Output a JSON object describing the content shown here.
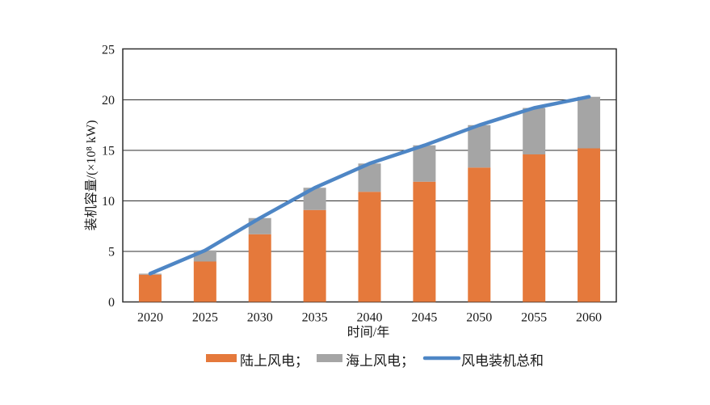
{
  "chart_data": {
    "type": "bar",
    "subtype": "stacked-bar-with-total-line",
    "title": "",
    "categories": [
      "2020",
      "2025",
      "2030",
      "2035",
      "2040",
      "2045",
      "2050",
      "2055",
      "2060"
    ],
    "series": [
      {
        "name": "陆上风电",
        "type": "bar",
        "stack": "capacity",
        "color": "#E5793B",
        "values": [
          2.7,
          4.0,
          6.7,
          9.1,
          10.9,
          11.9,
          13.3,
          14.6,
          15.2
        ]
      },
      {
        "name": "海上风电",
        "type": "bar",
        "stack": "capacity",
        "color": "#A5A5A5",
        "values": [
          0.1,
          1.1,
          1.6,
          2.2,
          2.8,
          3.6,
          4.2,
          4.6,
          5.1
        ]
      },
      {
        "name": "风电装机总和",
        "type": "line",
        "color": "#4E86C5",
        "values": [
          2.8,
          5.1,
          8.3,
          11.3,
          13.7,
          15.5,
          17.5,
          19.2,
          20.3
        ]
      }
    ],
    "xlabel": "时间/年",
    "ylabel": "装机容量/(×10⁸ kW)",
    "ylim": [
      0,
      25
    ],
    "yticks": [
      0,
      5,
      10,
      15,
      20,
      25
    ],
    "grid": true,
    "legend_position": "bottom",
    "legend": [
      {
        "label": "陆上风电；",
        "swatch": "rect",
        "color": "#E5793B"
      },
      {
        "label": "海上风电；",
        "swatch": "rect",
        "color": "#A5A5A5"
      },
      {
        "label": "风电装机总和",
        "swatch": "line",
        "color": "#4E86C5"
      }
    ]
  },
  "colors": {
    "axis": "#2f2f2f",
    "text": "#1a1a1a",
    "background": "#ffffff"
  }
}
